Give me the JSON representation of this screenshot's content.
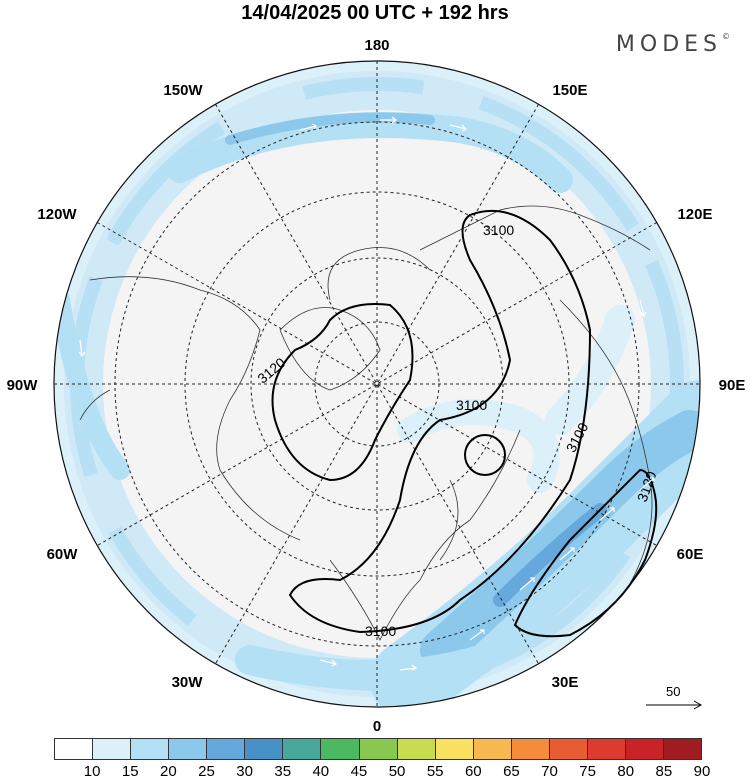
{
  "title": "14/04/2025  00 UTC  + 192 hrs",
  "brand": "MODES",
  "brand_mark": "©",
  "map": {
    "projection": "north-polar-stereographic",
    "lon_labels": [
      "180",
      "150E",
      "120E",
      "90E",
      "60E",
      "30E",
      "0",
      "30W",
      "60W",
      "90W",
      "120W",
      "150W"
    ],
    "contours": [
      "3100",
      "3100",
      "3100",
      "3100",
      "3120",
      "3120"
    ]
  },
  "colorbar": {
    "colors": [
      "#ffffff",
      "#dcf0fa",
      "#b4e0f5",
      "#8cc8eb",
      "#64a8dc",
      "#4890c8",
      "#48a89c",
      "#4cb860",
      "#88c850",
      "#c8dc50",
      "#f8e060",
      "#f8b850",
      "#f48c3c",
      "#e85c34",
      "#dc3c30",
      "#c82428",
      "#a01c20"
    ],
    "ticks": [
      "10",
      "15",
      "20",
      "25",
      "30",
      "35",
      "40",
      "45",
      "50",
      "55",
      "60",
      "65",
      "70",
      "75",
      "80",
      "85",
      "90"
    ]
  },
  "vector_ref": {
    "label": "50"
  }
}
